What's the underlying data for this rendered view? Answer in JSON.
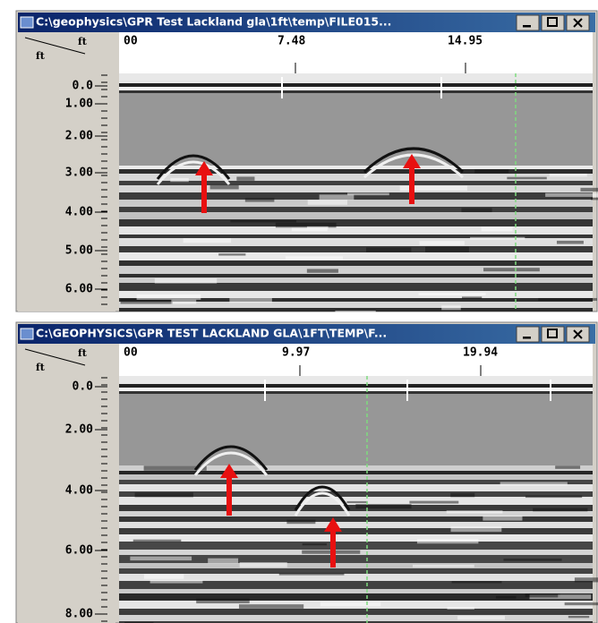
{
  "windows": [
    {
      "title": "C:\\geophysics\\GPR Test Lackland gla\\1ft\\temp\\FILE015...",
      "corner_top": "ft",
      "corner_left": "ft",
      "x_ticks": [
        "00",
        "7.48",
        "14.95"
      ],
      "y_ticks": [
        "0.0",
        "1.00",
        "2.00",
        "3.00",
        "4.00",
        "5.00",
        "6.00"
      ]
    },
    {
      "title": "C:\\GEOPHYSICS\\GPR TEST LACKLAND GLA\\1FT\\TEMP\\F...",
      "corner_top": "ft",
      "corner_left": "ft",
      "x_ticks": [
        "00",
        "9.97",
        "19.94"
      ],
      "y_ticks": [
        "0.0",
        "2.00",
        "4.00",
        "6.00",
        "8.00"
      ]
    }
  ]
}
